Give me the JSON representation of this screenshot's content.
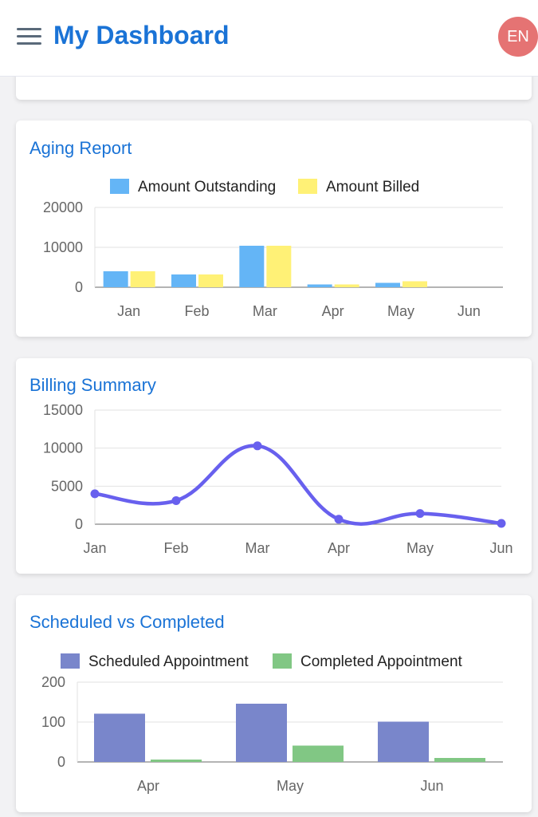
{
  "header": {
    "title": "My Dashboard",
    "language_badge": "EN"
  },
  "colors": {
    "accent": "#1a73d6",
    "outstanding": "#64b5f6",
    "billed": "#fff176",
    "billing_line": "#6860ee",
    "scheduled": "#7986cb",
    "completed": "#81c784",
    "avatar": "#e57373"
  },
  "icons": {
    "menu": "hamburger-menu-icon"
  },
  "cards": {
    "aging": {
      "title": "Aging Report"
    },
    "billing": {
      "title": "Billing Summary"
    },
    "appointments": {
      "title": "Scheduled vs Completed"
    }
  },
  "chart_data": [
    {
      "type": "bar",
      "title": "Aging Report",
      "categories": [
        "Jan",
        "Feb",
        "Mar",
        "Apr",
        "May",
        "Jun"
      ],
      "series": [
        {
          "name": "Amount Outstanding",
          "values": [
            4000,
            3200,
            10400,
            700,
            1100,
            0
          ]
        },
        {
          "name": "Amount Billed",
          "values": [
            4000,
            3200,
            10400,
            700,
            1500,
            0
          ]
        }
      ],
      "ylim": [
        0,
        20000
      ],
      "yticks": [
        0,
        10000,
        20000
      ],
      "legend": "top",
      "grid": true
    },
    {
      "type": "line",
      "title": "Billing Summary",
      "categories": [
        "Jan",
        "Feb",
        "Mar",
        "Apr",
        "May",
        "Jun"
      ],
      "series": [
        {
          "values": [
            4000,
            3100,
            10300,
            650,
            1400,
            100
          ]
        }
      ],
      "ylim": [
        0,
        15000
      ],
      "yticks": [
        0,
        5000,
        10000,
        15000
      ],
      "grid": true,
      "smooth": true
    },
    {
      "type": "bar",
      "title": "Scheduled vs Completed",
      "categories": [
        "Apr",
        "May",
        "Jun"
      ],
      "series": [
        {
          "name": "Scheduled Appointment",
          "values": [
            121,
            146,
            101
          ]
        },
        {
          "name": "Completed Appointment",
          "values": [
            6,
            41,
            10
          ]
        }
      ],
      "ylim": [
        0,
        200
      ],
      "yticks": [
        0,
        100,
        200
      ],
      "legend": "top",
      "grid": true
    }
  ]
}
